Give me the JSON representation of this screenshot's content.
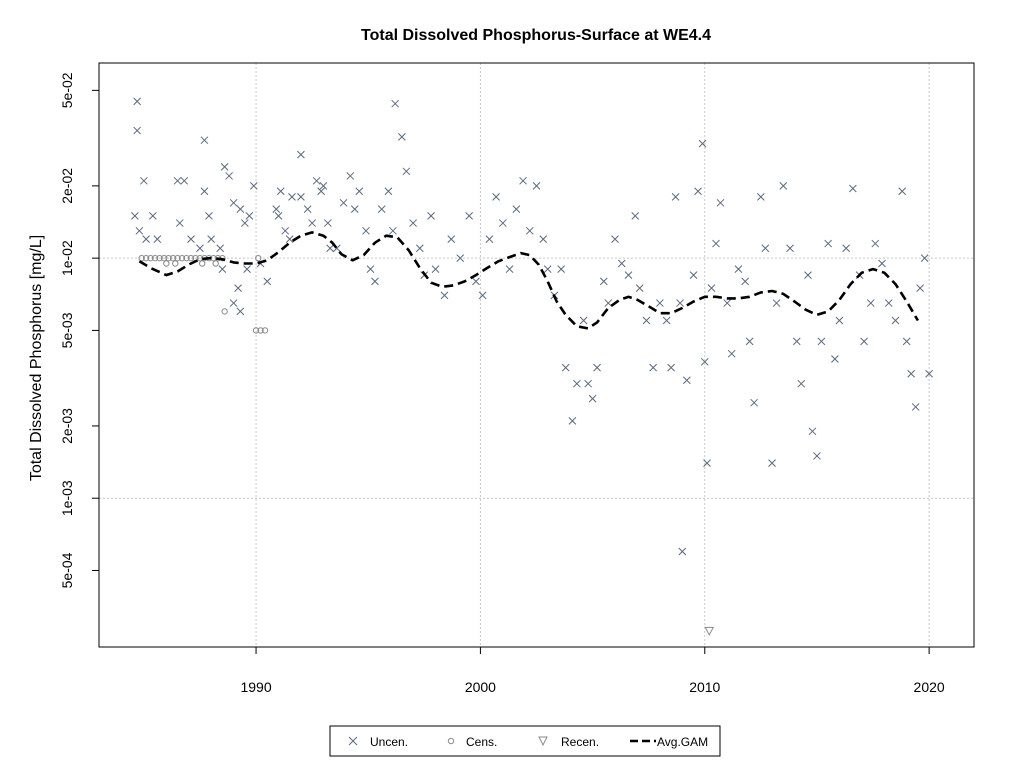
{
  "chart_data": {
    "type": "scatter",
    "title": "Total Dissolved Phosphorus-Surface at WE4.4",
    "xlabel": "",
    "ylabel": "Total Dissolved Phosphorus [mg/L]",
    "xlim": [
      1983.0,
      2022.0
    ],
    "ylim": [
      0.00024,
      0.065
    ],
    "y_scale": "log",
    "grid": true,
    "x_ticks": [
      {
        "value": 1990,
        "label": "1990"
      },
      {
        "value": 2000,
        "label": "2000"
      },
      {
        "value": 2010,
        "label": "2010"
      },
      {
        "value": 2020,
        "label": "2020"
      }
    ],
    "y_ticks": [
      {
        "value": 0.0005,
        "label": "5e-04"
      },
      {
        "value": 0.001,
        "label": "1e-03"
      },
      {
        "value": 0.002,
        "label": "2e-03"
      },
      {
        "value": 0.005,
        "label": "5e-03"
      },
      {
        "value": 0.01,
        "label": "1e-02"
      },
      {
        "value": 0.02,
        "label": "2e-02"
      },
      {
        "value": 0.05,
        "label": "5e-02"
      }
    ],
    "legend": {
      "position": "bottom",
      "entries": [
        {
          "label": "Uncen.",
          "marker": "x"
        },
        {
          "label": "Cens.",
          "marker": "circle"
        },
        {
          "label": "Recen.",
          "marker": "triangle-down"
        },
        {
          "label": "Avg.GAM",
          "marker": "dashed-line"
        }
      ]
    },
    "colors": {
      "uncen": "#5a6a80",
      "cens": "#8a8a8a",
      "recen": "#8a8a8a",
      "gam": "#000000",
      "grid": "#c8c8c8"
    },
    "series": [
      {
        "name": "Uncen.",
        "marker": "x",
        "points": [
          [
            1984.7,
            0.045
          ],
          [
            1984.7,
            0.034
          ],
          [
            1984.6,
            0.015
          ],
          [
            1984.8,
            0.013
          ],
          [
            1985.0,
            0.021
          ],
          [
            1985.1,
            0.012
          ],
          [
            1985.4,
            0.015
          ],
          [
            1985.6,
            0.012
          ],
          [
            1986.5,
            0.021
          ],
          [
            1986.8,
            0.021
          ],
          [
            1986.6,
            0.014
          ],
          [
            1987.1,
            0.012
          ],
          [
            1987.5,
            0.011
          ],
          [
            1987.7,
            0.031
          ],
          [
            1987.7,
            0.019
          ],
          [
            1987.9,
            0.015
          ],
          [
            1988.0,
            0.012
          ],
          [
            1988.4,
            0.011
          ],
          [
            1988.6,
            0.024
          ],
          [
            1988.8,
            0.022
          ],
          [
            1988.5,
            0.009
          ],
          [
            1989.0,
            0.017
          ],
          [
            1989.3,
            0.016
          ],
          [
            1989.5,
            0.014
          ],
          [
            1989.6,
            0.009
          ],
          [
            1989.9,
            0.02
          ],
          [
            1989.7,
            0.015
          ],
          [
            1989.2,
            0.0075
          ],
          [
            1989.0,
            0.0065
          ],
          [
            1989.3,
            0.006
          ],
          [
            1990.2,
            0.0095
          ],
          [
            1990.5,
            0.008
          ],
          [
            1990.9,
            0.016
          ],
          [
            1991.0,
            0.015
          ],
          [
            1991.1,
            0.019
          ],
          [
            1991.3,
            0.013
          ],
          [
            1991.5,
            0.012
          ],
          [
            1991.6,
            0.018
          ],
          [
            1992.0,
            0.027
          ],
          [
            1992.0,
            0.018
          ],
          [
            1992.3,
            0.016
          ],
          [
            1992.5,
            0.014
          ],
          [
            1992.7,
            0.021
          ],
          [
            1992.9,
            0.019
          ],
          [
            1993.0,
            0.02
          ],
          [
            1993.2,
            0.014
          ],
          [
            1993.3,
            0.011
          ],
          [
            1993.6,
            0.011
          ],
          [
            1993.9,
            0.017
          ],
          [
            1994.2,
            0.022
          ],
          [
            1994.4,
            0.016
          ],
          [
            1994.6,
            0.019
          ],
          [
            1994.9,
            0.013
          ],
          [
            1995.1,
            0.009
          ],
          [
            1995.3,
            0.008
          ],
          [
            1995.6,
            0.016
          ],
          [
            1995.9,
            0.019
          ],
          [
            1996.1,
            0.013
          ],
          [
            1996.2,
            0.044
          ],
          [
            1996.5,
            0.032
          ],
          [
            1996.7,
            0.023
          ],
          [
            1997.0,
            0.014
          ],
          [
            1997.3,
            0.011
          ],
          [
            1997.5,
            0.0085
          ],
          [
            1997.8,
            0.015
          ],
          [
            1998.0,
            0.009
          ],
          [
            1998.4,
            0.007
          ],
          [
            1998.7,
            0.012
          ],
          [
            1999.1,
            0.01
          ],
          [
            1999.5,
            0.015
          ],
          [
            1999.8,
            0.008
          ],
          [
            2000.1,
            0.007
          ],
          [
            2000.4,
            0.012
          ],
          [
            2000.7,
            0.018
          ],
          [
            2001.0,
            0.014
          ],
          [
            2001.3,
            0.009
          ],
          [
            2001.6,
            0.016
          ],
          [
            2001.9,
            0.021
          ],
          [
            2002.2,
            0.013
          ],
          [
            2002.5,
            0.02
          ],
          [
            2002.8,
            0.012
          ],
          [
            2003.0,
            0.009
          ],
          [
            2003.3,
            0.007
          ],
          [
            2003.6,
            0.009
          ],
          [
            2003.8,
            0.0035
          ],
          [
            2004.1,
            0.0021
          ],
          [
            2004.3,
            0.003
          ],
          [
            2004.6,
            0.0055
          ],
          [
            2004.8,
            0.003
          ],
          [
            2005.0,
            0.0026
          ],
          [
            2005.2,
            0.0035
          ],
          [
            2005.5,
            0.008
          ],
          [
            2005.7,
            0.0065
          ],
          [
            2006.0,
            0.012
          ],
          [
            2006.3,
            0.0095
          ],
          [
            2006.6,
            0.0085
          ],
          [
            2006.9,
            0.015
          ],
          [
            2007.1,
            0.0075
          ],
          [
            2007.4,
            0.0055
          ],
          [
            2007.7,
            0.0035
          ],
          [
            2008.0,
            0.0065
          ],
          [
            2008.3,
            0.0055
          ],
          [
            2008.5,
            0.0035
          ],
          [
            2008.7,
            0.018
          ],
          [
            2008.9,
            0.0065
          ],
          [
            2009.0,
            0.0006
          ],
          [
            2009.2,
            0.0031
          ],
          [
            2009.5,
            0.0085
          ],
          [
            2009.7,
            0.019
          ],
          [
            2009.9,
            0.03
          ],
          [
            2010.0,
            0.0037
          ],
          [
            2010.1,
            0.0014
          ],
          [
            2010.3,
            0.0075
          ],
          [
            2010.5,
            0.0115
          ],
          [
            2010.7,
            0.017
          ],
          [
            2011.0,
            0.0065
          ],
          [
            2011.2,
            0.004
          ],
          [
            2011.5,
            0.009
          ],
          [
            2011.8,
            0.008
          ],
          [
            2012.0,
            0.0045
          ],
          [
            2012.2,
            0.0025
          ],
          [
            2012.5,
            0.018
          ],
          [
            2012.7,
            0.011
          ],
          [
            2013.0,
            0.0014
          ],
          [
            2013.2,
            0.0065
          ],
          [
            2013.5,
            0.02
          ],
          [
            2013.8,
            0.011
          ],
          [
            2014.1,
            0.0045
          ],
          [
            2014.3,
            0.003
          ],
          [
            2014.6,
            0.0085
          ],
          [
            2014.8,
            0.0019
          ],
          [
            2015.0,
            0.0015
          ],
          [
            2015.2,
            0.0045
          ],
          [
            2015.5,
            0.0115
          ],
          [
            2015.8,
            0.0038
          ],
          [
            2016.0,
            0.0055
          ],
          [
            2016.3,
            0.011
          ],
          [
            2016.6,
            0.0195
          ],
          [
            2016.9,
            0.0085
          ],
          [
            2017.1,
            0.0045
          ],
          [
            2017.4,
            0.0065
          ],
          [
            2017.6,
            0.0115
          ],
          [
            2017.9,
            0.0095
          ],
          [
            2018.2,
            0.0065
          ],
          [
            2018.5,
            0.0055
          ],
          [
            2018.8,
            0.019
          ],
          [
            2019.0,
            0.0045
          ],
          [
            2019.2,
            0.0033
          ],
          [
            2019.4,
            0.0024
          ],
          [
            2019.6,
            0.0075
          ],
          [
            2019.8,
            0.01
          ],
          [
            2020.0,
            0.0033
          ]
        ]
      },
      {
        "name": "Cens.",
        "marker": "circle",
        "points": [
          [
            1984.9,
            0.01
          ],
          [
            1985.1,
            0.01
          ],
          [
            1985.3,
            0.01
          ],
          [
            1985.5,
            0.01
          ],
          [
            1985.7,
            0.01
          ],
          [
            1985.9,
            0.01
          ],
          [
            1986.1,
            0.01
          ],
          [
            1986.3,
            0.01
          ],
          [
            1986.5,
            0.01
          ],
          [
            1986.7,
            0.01
          ],
          [
            1986.9,
            0.01
          ],
          [
            1987.1,
            0.01
          ],
          [
            1987.3,
            0.01
          ],
          [
            1987.5,
            0.01
          ],
          [
            1987.7,
            0.01
          ],
          [
            1987.9,
            0.01
          ],
          [
            1988.1,
            0.01
          ],
          [
            1988.3,
            0.01
          ],
          [
            1988.5,
            0.01
          ],
          [
            1986.0,
            0.0095
          ],
          [
            1986.4,
            0.0095
          ],
          [
            1987.6,
            0.0095
          ],
          [
            1988.2,
            0.0095
          ],
          [
            1988.6,
            0.006
          ],
          [
            1990.0,
            0.005
          ],
          [
            1990.2,
            0.005
          ],
          [
            1990.4,
            0.005
          ],
          [
            1990.1,
            0.01
          ]
        ]
      },
      {
        "name": "Recen.",
        "marker": "triangle-down",
        "points": [
          [
            2010.2,
            0.00028
          ]
        ]
      },
      {
        "name": "Avg.GAM",
        "marker": "dashed-line",
        "points": [
          [
            1984.8,
            0.0097
          ],
          [
            1985.3,
            0.0091
          ],
          [
            1986.0,
            0.0085
          ],
          [
            1986.5,
            0.0088
          ],
          [
            1987.0,
            0.0094
          ],
          [
            1987.5,
            0.0099
          ],
          [
            1988.0,
            0.01
          ],
          [
            1988.5,
            0.0099
          ],
          [
            1989.0,
            0.0096
          ],
          [
            1989.5,
            0.0095
          ],
          [
            1990.0,
            0.0095
          ],
          [
            1990.5,
            0.0098
          ],
          [
            1991.0,
            0.0106
          ],
          [
            1991.5,
            0.0116
          ],
          [
            1992.0,
            0.0124
          ],
          [
            1992.5,
            0.0128
          ],
          [
            1993.0,
            0.0124
          ],
          [
            1993.4,
            0.0116
          ],
          [
            1993.8,
            0.0104
          ],
          [
            1994.3,
            0.0098
          ],
          [
            1994.8,
            0.0103
          ],
          [
            1995.3,
            0.0116
          ],
          [
            1995.8,
            0.0124
          ],
          [
            1996.3,
            0.0122
          ],
          [
            1996.8,
            0.0108
          ],
          [
            1997.3,
            0.0091
          ],
          [
            1997.8,
            0.0079
          ],
          [
            1998.3,
            0.0076
          ],
          [
            1998.8,
            0.0077
          ],
          [
            1999.3,
            0.008
          ],
          [
            1999.8,
            0.0085
          ],
          [
            2000.3,
            0.0091
          ],
          [
            2000.8,
            0.0097
          ],
          [
            2001.3,
            0.0101
          ],
          [
            2001.8,
            0.0105
          ],
          [
            2002.2,
            0.0103
          ],
          [
            2002.6,
            0.0094
          ],
          [
            2003.0,
            0.008
          ],
          [
            2003.4,
            0.0066
          ],
          [
            2003.8,
            0.0058
          ],
          [
            2004.3,
            0.0052
          ],
          [
            2004.8,
            0.0051
          ],
          [
            2005.2,
            0.0054
          ],
          [
            2005.7,
            0.0062
          ],
          [
            2006.2,
            0.0067
          ],
          [
            2006.6,
            0.0069
          ],
          [
            2007.0,
            0.0067
          ],
          [
            2007.5,
            0.0063
          ],
          [
            2008.0,
            0.0059
          ],
          [
            2008.5,
            0.0059
          ],
          [
            2009.0,
            0.0062
          ],
          [
            2009.5,
            0.0066
          ],
          [
            2010.0,
            0.0069
          ],
          [
            2010.5,
            0.0069
          ],
          [
            2011.0,
            0.0068
          ],
          [
            2011.5,
            0.0068
          ],
          [
            2012.0,
            0.0069
          ],
          [
            2012.5,
            0.0072
          ],
          [
            2013.0,
            0.0073
          ],
          [
            2013.5,
            0.0071
          ],
          [
            2014.0,
            0.0066
          ],
          [
            2014.5,
            0.0061
          ],
          [
            2015.0,
            0.0058
          ],
          [
            2015.5,
            0.006
          ],
          [
            2016.0,
            0.0067
          ],
          [
            2016.5,
            0.0078
          ],
          [
            2017.0,
            0.0087
          ],
          [
            2017.5,
            0.009
          ],
          [
            2018.0,
            0.0087
          ],
          [
            2018.5,
            0.0078
          ],
          [
            2019.0,
            0.0066
          ],
          [
            2019.5,
            0.0055
          ]
        ]
      }
    ]
  }
}
